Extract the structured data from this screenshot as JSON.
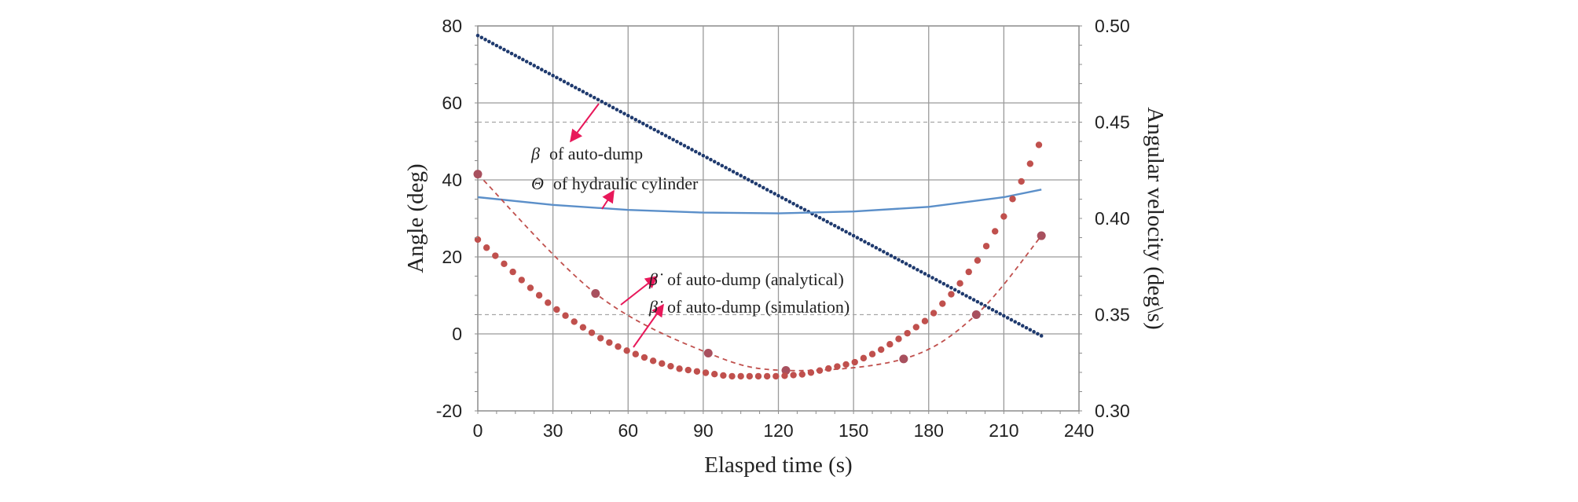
{
  "chart_data": {
    "type": "line",
    "title": "",
    "xlabel": "Elasped time (s)",
    "ylabel": "Angle (deg)",
    "y2label": "Angular velocity  (deg\\s)",
    "xlim": [
      0,
      240
    ],
    "ylim": [
      -20,
      80
    ],
    "y2lim": [
      0.3,
      0.5
    ],
    "x_ticks": [
      "0",
      "30",
      "60",
      "90",
      "120",
      "150",
      "180",
      "210",
      "240"
    ],
    "y_ticks": [
      "-20",
      "0",
      "20",
      "40",
      "60",
      "80"
    ],
    "y2_ticks": [
      "0.30",
      "0.35",
      "0.40",
      "0.45",
      "0.50"
    ],
    "grid": true,
    "series": [
      {
        "id": "beta",
        "axis": "left",
        "style": "dotted-line",
        "color": "#1f3a6e",
        "x": [
          0,
          225
        ],
        "y": [
          77.5,
          -0.5
        ]
      },
      {
        "id": "theta",
        "axis": "left",
        "style": "line",
        "color": "#5b8fc9",
        "x": [
          0,
          30,
          60,
          90,
          120,
          150,
          180,
          210,
          225
        ],
        "y": [
          35.5,
          33.5,
          32.2,
          31.5,
          31.3,
          31.8,
          33,
          35.5,
          37.5
        ]
      },
      {
        "id": "beta_dot_analytical",
        "axis": "right",
        "style": "markers",
        "color": "#c0504d",
        "x": [
          0,
          10,
          20,
          30,
          40,
          50,
          60,
          70,
          80,
          90,
          100,
          110,
          120,
          130,
          140,
          150,
          160,
          170,
          180,
          190,
          200,
          210,
          215,
          220,
          225
        ],
        "y": [
          0.389,
          0.377,
          0.365,
          0.354,
          0.345,
          0.337,
          0.331,
          0.326,
          0.322,
          0.32,
          0.318,
          0.318,
          0.318,
          0.319,
          0.322,
          0.325,
          0.331,
          0.339,
          0.348,
          0.362,
          0.379,
          0.401,
          0.414,
          0.427,
          0.441
        ]
      },
      {
        "id": "beta_dot_simulation",
        "axis": "right",
        "style": "dashed-markers",
        "color": "#c0504d",
        "x": [
          0,
          47,
          92,
          123,
          170,
          199,
          225
        ],
        "y": [
          0.423,
          0.361,
          0.33,
          0.321,
          0.327,
          0.35,
          0.391
        ]
      }
    ],
    "annotations": [
      {
        "symbol": "β",
        "text": "of auto-dump",
        "target": "beta"
      },
      {
        "symbol": "Θ",
        "text": "of hydraulic cylinder",
        "target": "theta"
      },
      {
        "symbol": "β̇",
        "text": "of auto-dump (analytical)",
        "target": "beta_dot_analytical"
      },
      {
        "symbol": "β̇",
        "text": "of auto-dump (simulation)",
        "target": "beta_dot_simulation"
      }
    ]
  }
}
